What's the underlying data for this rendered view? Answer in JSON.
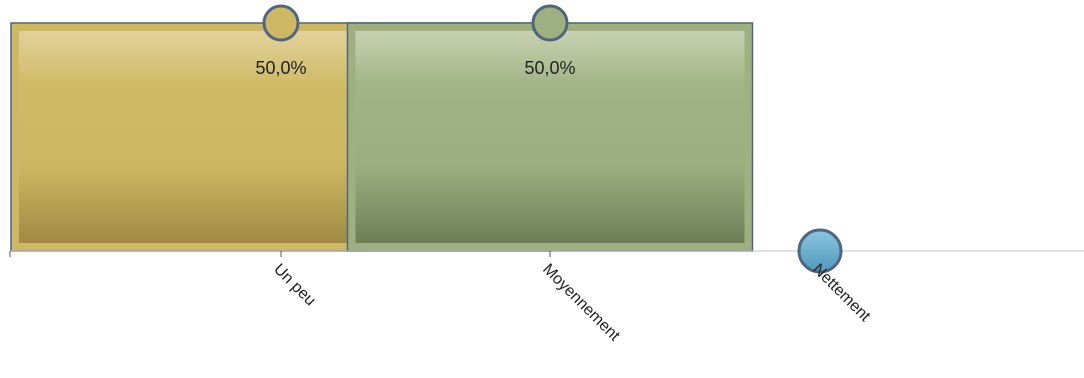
{
  "chart_data": {
    "type": "bar",
    "categories": [
      "Un peu",
      "Moyennement",
      "Nettement"
    ],
    "values": [
      50.0,
      50.0,
      0.0
    ],
    "value_labels": [
      "50,0%",
      "50,0%",
      ""
    ],
    "colors": [
      "#cdb865",
      "#9eb080",
      "#66aed0"
    ],
    "title": "",
    "xlabel": "",
    "ylabel": "",
    "grid": false,
    "legend": "none"
  }
}
